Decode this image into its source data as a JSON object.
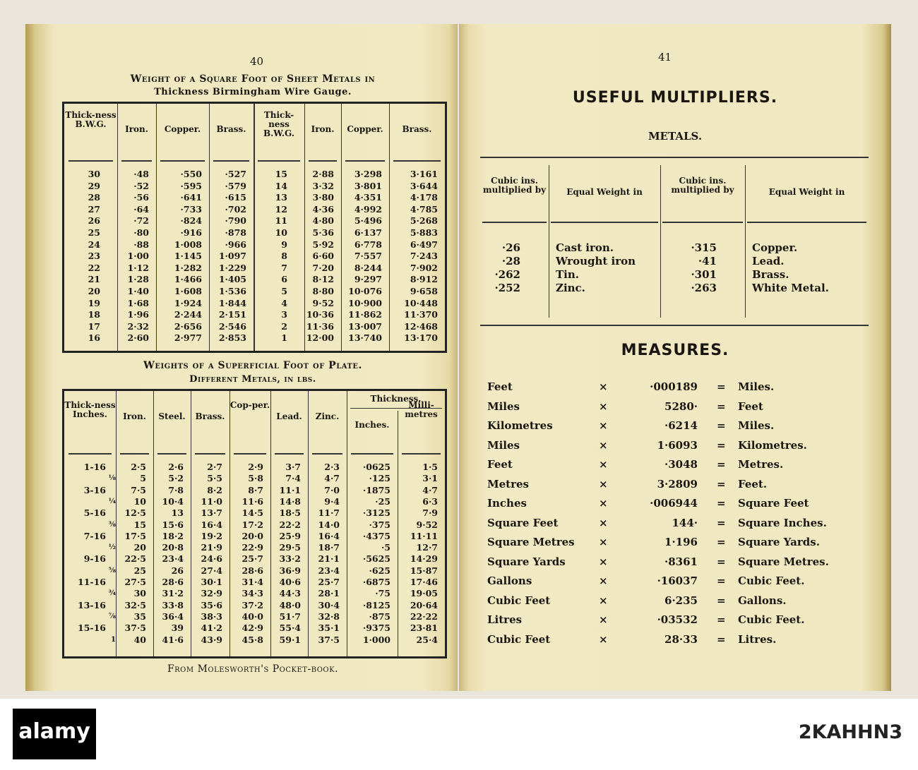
{
  "left_page": {
    "page_number": "40",
    "table1": {
      "title_line1": "Weight of a Square Foot of Sheet Metals in",
      "title_line2": "Thickness Birmingham Wire Gauge.",
      "headers": [
        "Thick-ness B.W.G.",
        "Iron.",
        "Copper.",
        "Brass.",
        "Thick-ness B.W.G.",
        "Iron.",
        "Copper.",
        "Brass."
      ],
      "columns": [
        [
          "30",
          "29",
          "28",
          "27",
          "26",
          "25",
          "24",
          "23",
          "22",
          "21",
          "20",
          "19",
          "18",
          "17",
          "16"
        ],
        [
          "·48",
          "·52",
          "·56",
          "·64",
          "·72",
          "·80",
          "·88",
          "1·00",
          "1·12",
          "1·28",
          "1·40",
          "1·68",
          "1·96",
          "2·32",
          "2·60"
        ],
        [
          "·550",
          "·595",
          "·641",
          "·733",
          "·824",
          "·916",
          "1·008",
          "1·145",
          "1·282",
          "1·466",
          "1·608",
          "1·924",
          "2·244",
          "2·656",
          "2·977"
        ],
        [
          "·527",
          "·579",
          "·615",
          "·702",
          "·790",
          "·878",
          "·966",
          "1·097",
          "1·229",
          "1·405",
          "1·536",
          "1·844",
          "2·151",
          "2·546",
          "2·853"
        ],
        [
          "15",
          "14",
          "13",
          "12",
          "11",
          "10",
          "9",
          "8",
          "7",
          "6",
          "5",
          "4",
          "3",
          "2",
          "1"
        ],
        [
          "2·88",
          "3·32",
          "3·80",
          "4·36",
          "4·80",
          "5·36",
          "5·92",
          "6·60",
          "7·20",
          "8·12",
          "8·80",
          "9·52",
          "10·36",
          "11·36",
          "12·00"
        ],
        [
          "3·298",
          "3·801",
          "4·351",
          "4·992",
          "5·496",
          "6·137",
          "6·778",
          "7·557",
          "8·244",
          "9·297",
          "10·076",
          "10·900",
          "11·862",
          "13·007",
          "13·740"
        ],
        [
          "3·161",
          "3·644",
          "4·178",
          "4·785",
          "5·268",
          "5·883",
          "6·497",
          "7·243",
          "7·902",
          "8·912",
          "9·658",
          "10·448",
          "11·370",
          "12·468",
          "13·170"
        ]
      ]
    },
    "table2": {
      "title_line1": "Weights of a Superficial Foot of Plate.",
      "title_line2": "Different Metals, in lbs.",
      "group_header": "Thickness.",
      "headers": [
        "Thick-ness Inches.",
        "Iron.",
        "Steel.",
        "Brass.",
        "Cop-per.",
        "Lead.",
        "Zinc.",
        "Inches.",
        "Milli-metres"
      ],
      "columns": [
        [
          "1-16",
          "⅛",
          "3-16",
          "¼",
          "5-16",
          "⅜",
          "7-16",
          "½",
          "9-16",
          "⅝",
          "11-16",
          "¾",
          "13-16",
          "⅞",
          "15-16",
          "1"
        ],
        [
          "2·5",
          "5",
          "7·5",
          "10",
          "12·5",
          "15",
          "17·5",
          "20",
          "22·5",
          "25",
          "27·5",
          "30",
          "32·5",
          "35",
          "37·5",
          "40"
        ],
        [
          "2·6",
          "5·2",
          "7·8",
          "10·4",
          "13",
          "15·6",
          "18·2",
          "20·8",
          "23·4",
          "26",
          "28·6",
          "31·2",
          "33·8",
          "36·4",
          "39",
          "41·6"
        ],
        [
          "2·7",
          "5·5",
          "8·2",
          "11·0",
          "13·7",
          "16·4",
          "19·2",
          "21·9",
          "24·6",
          "27·4",
          "30·1",
          "32·9",
          "35·6",
          "38·3",
          "41·2",
          "43·9"
        ],
        [
          "2·9",
          "5·8",
          "8·7",
          "11·6",
          "14·5",
          "17·2",
          "20·0",
          "22·9",
          "25·7",
          "28·6",
          "31·4",
          "34·3",
          "37·2",
          "40·0",
          "42·9",
          "45·8"
        ],
        [
          "3·7",
          "7·4",
          "11·1",
          "14·8",
          "18·5",
          "22·2",
          "25·9",
          "29·5",
          "33·2",
          "36·9",
          "40·6",
          "44·3",
          "48·0",
          "51·7",
          "55·4",
          "59·1"
        ],
        [
          "2·3",
          "4·7",
          "7·0",
          "9·4",
          "11·7",
          "14·0",
          "16·4",
          "18·7",
          "21·1",
          "23·4",
          "25·7",
          "28·1",
          "30·4",
          "32·8",
          "35·1",
          "37·5"
        ],
        [
          "·0625",
          "·125",
          "·1875",
          "·25",
          "·3125",
          "·375",
          "·4375",
          "·5",
          "·5625",
          "·625",
          "·6875",
          "·75",
          "·8125",
          "·875",
          "·9375",
          "1·000"
        ],
        [
          "1·5",
          "3·1",
          "4·7",
          "6·3",
          "7·9",
          "9·52",
          "11·11",
          "12·7",
          "14·29",
          "15·87",
          "17·46",
          "19·05",
          "20·64",
          "22·22",
          "23·81",
          "25·4"
        ]
      ]
    },
    "footer": "From Molesworth's Pocket-book."
  },
  "right_page": {
    "page_number": "41",
    "heading": "USEFUL MULTIPLIERS.",
    "metals": {
      "title": "METALS.",
      "headers": [
        "Cubic ins. multiplied by",
        "Equal Weight in",
        "Cubic ins. multiplied by",
        "Equal Weight in"
      ],
      "rows": [
        [
          "·26",
          "Cast iron.",
          "·315",
          "Copper."
        ],
        [
          "·28",
          "Wrought iron",
          "·41",
          "Lead."
        ],
        [
          "·262",
          "Tin.",
          "·301",
          "Brass."
        ],
        [
          "·252",
          "Zinc.",
          "·263",
          "White Metal."
        ]
      ]
    },
    "measures": {
      "title": "MEASURES.",
      "times": "×",
      "equals": "=",
      "rows": [
        [
          "Feet",
          "·000189",
          "Miles."
        ],
        [
          "Miles",
          "5280·",
          "Feet"
        ],
        [
          "Kilometres",
          "·6214",
          "Miles."
        ],
        [
          "Miles",
          "1·6093",
          "Kilometres."
        ],
        [
          "Feet",
          "·3048",
          "Metres."
        ],
        [
          "Metres",
          "3·2809",
          "Feet."
        ],
        [
          "Inches",
          "·006944",
          "Square Feet"
        ],
        [
          "Square Feet",
          "144·",
          "Square Inches."
        ],
        [
          "Square Metres",
          "1·196",
          "Square Yards."
        ],
        [
          "Square Yards",
          "·8361",
          "Square Metres."
        ],
        [
          "Gallons",
          "·16037",
          "Cubic Feet."
        ],
        [
          "Cubic Feet",
          "6·235",
          "Gallons."
        ],
        [
          "Litres",
          "·03532",
          "Cubic Feet."
        ],
        [
          "Cubic Feet",
          "28·33",
          "Litres."
        ]
      ]
    }
  },
  "watermark": {
    "logo": "alamy",
    "image_id": "2KAHHN3"
  }
}
